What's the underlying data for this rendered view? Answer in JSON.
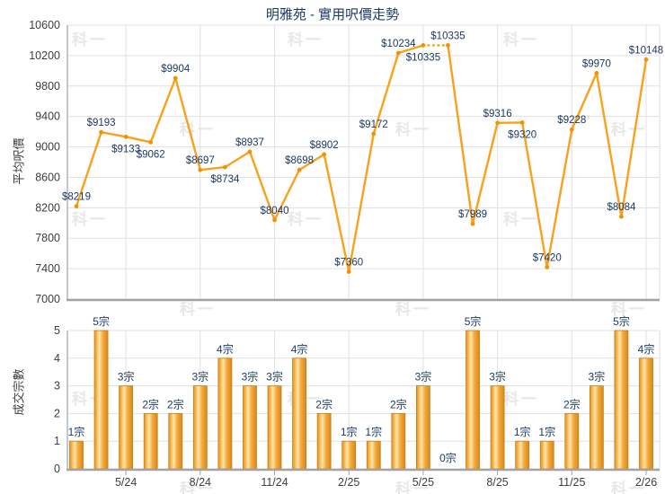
{
  "title": "明雅苑 - 實用呎價走勢",
  "watermark_text": "科一",
  "colors": {
    "line_orange": "#F9A11B",
    "marker_orange": "#F29200",
    "label_navy": "#1B3A64",
    "title_navy": "#1B3A64",
    "bar_mid": "#F5AC3C",
    "bar_highlight": "#FFE6AD",
    "bar_edge_dark": "#D8861F",
    "bar_border": "#C67F16",
    "grid_gray": "#E0E0E0",
    "axis_gray": "#A3A3A3",
    "plot_border_gray": "#AEB5BD",
    "tick_text_gray": "#3D3D3D",
    "watermark_gray": "#E7E7E7"
  },
  "chart_data": [
    {
      "type": "line",
      "name": "average-price-per-sqft-trend",
      "title": "明雅苑 - 實用呎價走勢",
      "ylabel": "平均呎價",
      "xlabel": "",
      "ylim": [
        7000,
        10600
      ],
      "y_ticks": [
        7000,
        7400,
        7800,
        8200,
        8600,
        9000,
        9400,
        9800,
        10200,
        10600
      ],
      "x_tick_labels": [
        "5/24",
        "8/24",
        "11/24",
        "2/25",
        "5/25",
        "8/25",
        "11/25",
        "2/26"
      ],
      "x_tick_indices": [
        2,
        5,
        8,
        11,
        14,
        17,
        20,
        23
      ],
      "n_points": 24,
      "values": [
        8219,
        9193,
        9133,
        9062,
        9904,
        8697,
        8734,
        8937,
        8040,
        8698,
        8902,
        7360,
        9172,
        10234,
        10335,
        10335,
        7989,
        9316,
        9320,
        7420,
        9228,
        9970,
        8084,
        10148
      ],
      "point_labels": [
        "$8219",
        "$9193",
        "$9133",
        "$9062",
        "$9904",
        "$8697",
        "$8734",
        "$8937",
        "$8040",
        "$8698",
        "$8902",
        "$7360",
        "$9172",
        "$10234",
        "$10335",
        "$10335",
        "$7989",
        "$9316",
        "$9320",
        "$7420",
        "$9228",
        "$9970",
        "$8084",
        "$10148"
      ],
      "label_positions": [
        "above",
        "above",
        "below",
        "below",
        "above",
        "above",
        "below",
        "above",
        "above",
        "above",
        "above",
        "above",
        "above",
        "above",
        "below",
        "above",
        "above",
        "above",
        "below",
        "above",
        "above",
        "above",
        "above",
        "above"
      ],
      "dashed_segment_between_indices": [
        14,
        15
      ],
      "grid": true,
      "legend": "none"
    },
    {
      "type": "bar",
      "name": "transaction-count",
      "ylabel": "成交宗數",
      "xlabel": "",
      "ylim": [
        0,
        5
      ],
      "y_ticks": [
        0,
        1,
        2,
        3,
        4,
        5
      ],
      "x_tick_labels": [
        "5/24",
        "8/24",
        "11/24",
        "2/25",
        "5/25",
        "8/25",
        "11/25",
        "2/26"
      ],
      "x_tick_indices": [
        2,
        5,
        8,
        11,
        14,
        17,
        20,
        23
      ],
      "values": [
        1,
        5,
        3,
        2,
        2,
        3,
        4,
        3,
        3,
        4,
        2,
        1,
        1,
        2,
        3,
        0,
        5,
        3,
        1,
        1,
        2,
        3,
        5,
        4
      ],
      "bar_labels": [
        "1宗",
        "5宗",
        "3宗",
        "2宗",
        "2宗",
        "3宗",
        "4宗",
        "3宗",
        "3宗",
        "4宗",
        "2宗",
        "1宗",
        "1宗",
        "2宗",
        "3宗",
        "0宗",
        "5宗",
        "3宗",
        "1宗",
        "1宗",
        "2宗",
        "3宗",
        "5宗",
        "4宗"
      ],
      "grid": true,
      "legend": "none"
    }
  ]
}
